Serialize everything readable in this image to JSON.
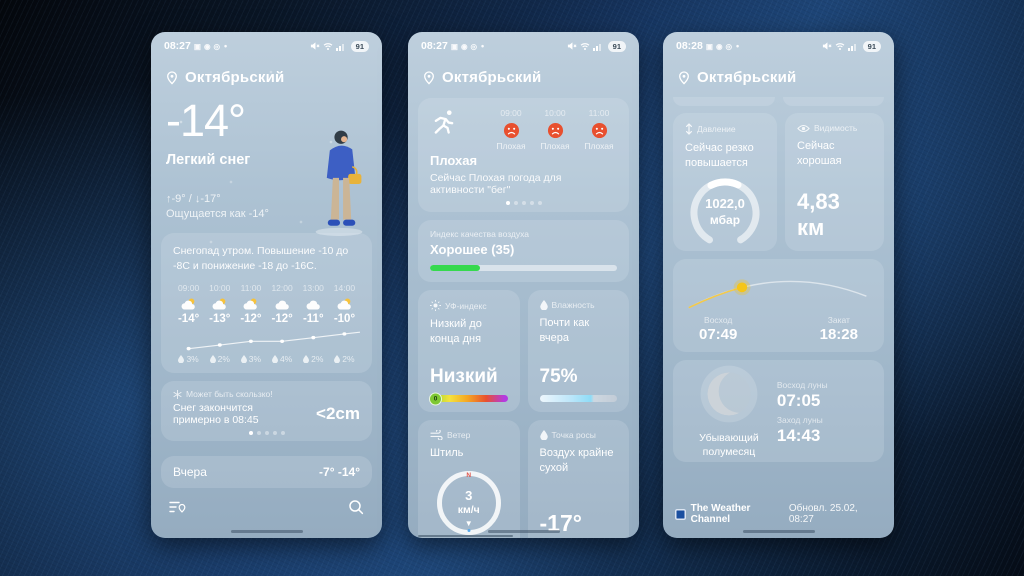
{
  "background": {
    "base": "#0a1626",
    "glow": "#2c63a8"
  },
  "phones": [
    {
      "name": "current-conditions",
      "status": {
        "time": "08:27",
        "battery": "91"
      },
      "location": "Октябрьский",
      "current": {
        "temp": "-14°",
        "condition": "Легкий снег",
        "high_low": "↑-9° / ↓-17°",
        "feels_like": "Ощущается как -14°"
      },
      "forecast": {
        "summary": "Снегопад утром. Повышение -10 до -8С и понижение -18 до -16С.",
        "hours": [
          {
            "time": "09:00",
            "temp": "-14°",
            "temp_num": -14,
            "precip": "3%"
          },
          {
            "time": "10:00",
            "temp": "-13°",
            "temp_num": -13,
            "precip": "2%"
          },
          {
            "time": "11:00",
            "temp": "-12°",
            "temp_num": -12,
            "precip": "3%"
          },
          {
            "time": "12:00",
            "temp": "-12°",
            "temp_num": -12,
            "precip": "4%"
          },
          {
            "time": "13:00",
            "temp": "-11°",
            "temp_num": -11,
            "precip": "2%"
          },
          {
            "time": "14:00",
            "temp": "-10°",
            "temp_num": -10,
            "precip": "2%"
          }
        ]
      },
      "snow_card": {
        "title": "Может быть скользко!",
        "text": "Снег закончится примерно в 08:45",
        "amount": "<2cm"
      },
      "yesterday": {
        "label": "Вчера",
        "range": "-7° -14°"
      }
    },
    {
      "name": "details-page-1",
      "status": {
        "time": "08:27",
        "battery": "91"
      },
      "location": "Октябрьский",
      "activity": {
        "rating": "Плохая",
        "text": "Сейчас Плохая погода для активности \"бег\"",
        "hours": [
          {
            "time": "09:00",
            "label": "Плохая"
          },
          {
            "time": "10:00",
            "label": "Плохая"
          },
          {
            "time": "11:00",
            "label": "Плохая"
          }
        ]
      },
      "aqi": {
        "label": "Индекс качества воздуха",
        "value": "Хорошее (35)",
        "percent": 27,
        "color": "#35d94e"
      },
      "uv": {
        "title": "УФ-индекс",
        "desc": "Низкий до конца дня",
        "value": "Низкий",
        "marker": "0"
      },
      "humidity": {
        "title": "Влажность",
        "desc": "Почти как вчера",
        "value": "75%"
      },
      "wind": {
        "title": "Ветер",
        "desc": "Штиль",
        "speed": "3",
        "unit": "км/ч",
        "north": "N"
      },
      "dew_point": {
        "title": "Точка росы",
        "desc": "Воздух крайне сухой",
        "value": "-17°"
      }
    },
    {
      "name": "details-page-2",
      "status": {
        "time": "08:28",
        "battery": "91"
      },
      "location": "Октябрьский",
      "pressure": {
        "title": "Давление",
        "desc": "Сейчас резко повышается",
        "value": "1022,0",
        "unit": "мбар"
      },
      "visibility": {
        "title": "Видимость",
        "desc": "Сейчас хорошая",
        "value": "4,83 км"
      },
      "sun": {
        "sunrise_label": "Восход",
        "sunrise": "07:49",
        "sunset_label": "Закат",
        "sunset": "18:28"
      },
      "moon": {
        "phase": "Убывающий полумесяц",
        "moonrise_label": "Восход луны",
        "moonrise": "07:05",
        "moonset_label": "Заход луны",
        "moonset": "14:43"
      },
      "footer": {
        "source": "The Weather Channel",
        "updated": "Обновл. 25.02, 08:27"
      }
    }
  ]
}
